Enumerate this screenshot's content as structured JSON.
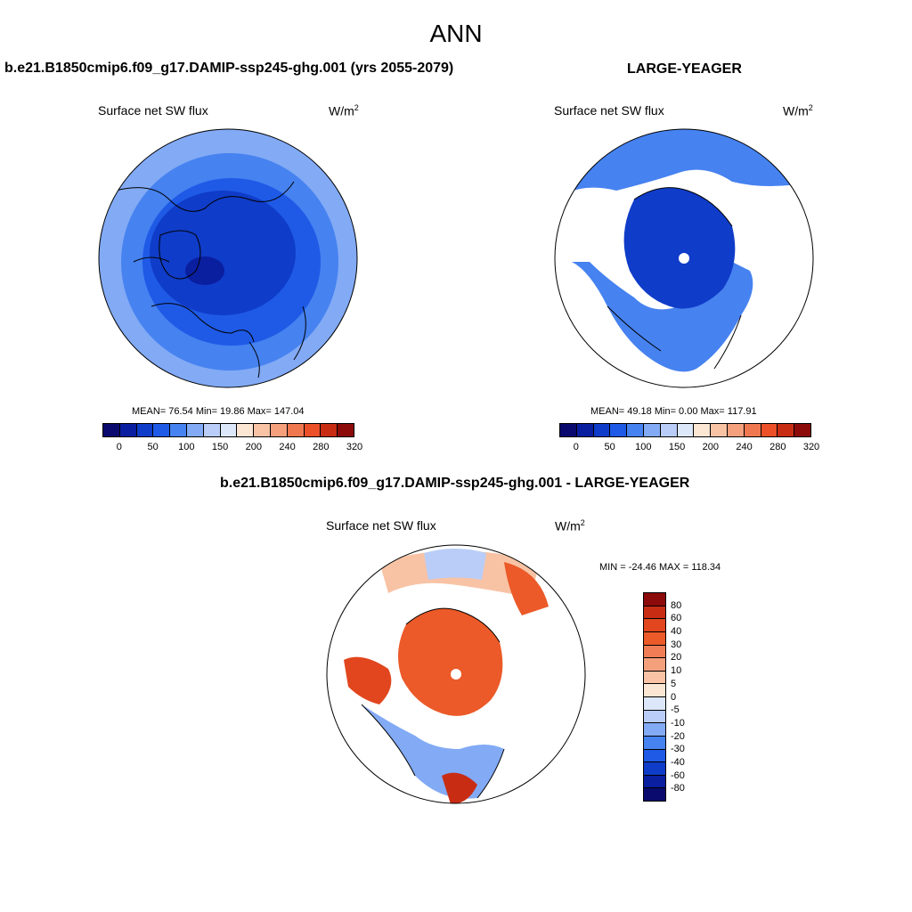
{
  "main_title": "ANN",
  "panels": [
    {
      "title": "b.e21.B1850cmip6.f09_g17.DAMIP-ssp245-ghg.001 (yrs 2055-2079)",
      "variable": "Surface net SW flux",
      "units": "W/m",
      "units_exp": "2",
      "stats": "MEAN=  76.54  Min=  19.86  Max= 147.04"
    },
    {
      "title": "LARGE-YEAGER",
      "variable": "Surface net SW flux",
      "units": "W/m",
      "units_exp": "2",
      "stats": "MEAN=  49.18  Min=   0.00  Max= 117.91"
    },
    {
      "title": "b.e21.B1850cmip6.f09_g17.DAMIP-ssp245-ghg.001 - LARGE-YEAGER",
      "variable": "Surface net SW flux",
      "units": "W/m",
      "units_exp": "2",
      "stats": "MIN = -24.46 MAX = 118.34"
    }
  ],
  "colorbar_abs": {
    "colors": [
      "#0a0a6e",
      "#0a1ea0",
      "#0f3cc8",
      "#1e5ae6",
      "#4682f0",
      "#82aaf5",
      "#b9cdf8",
      "#dce8fa",
      "#fbe6d4",
      "#f8c3a5",
      "#f5a07d",
      "#f07850",
      "#eb5028",
      "#c82d14",
      "#8c0a0a"
    ],
    "tick_labels": [
      "0",
      "50",
      "100",
      "150",
      "200",
      "240",
      "280",
      "320"
    ]
  },
  "colorbar_diff": {
    "colors": [
      "#8c0a0a",
      "#c82d14",
      "#e1461e",
      "#eb5a28",
      "#f07d55",
      "#f5a07d",
      "#fac3a5",
      "#fbe6d4",
      "#dce8fa",
      "#b9cdf8",
      "#82aaf5",
      "#4682f0",
      "#1e5ae6",
      "#0f3cc8",
      "#0a1ea0",
      "#0a0a6e"
    ],
    "tick_labels": [
      "80",
      "60",
      "40",
      "30",
      "20",
      "10",
      "5",
      "0",
      "-5",
      "-10",
      "-20",
      "-30",
      "-40",
      "-60",
      "-80"
    ]
  }
}
